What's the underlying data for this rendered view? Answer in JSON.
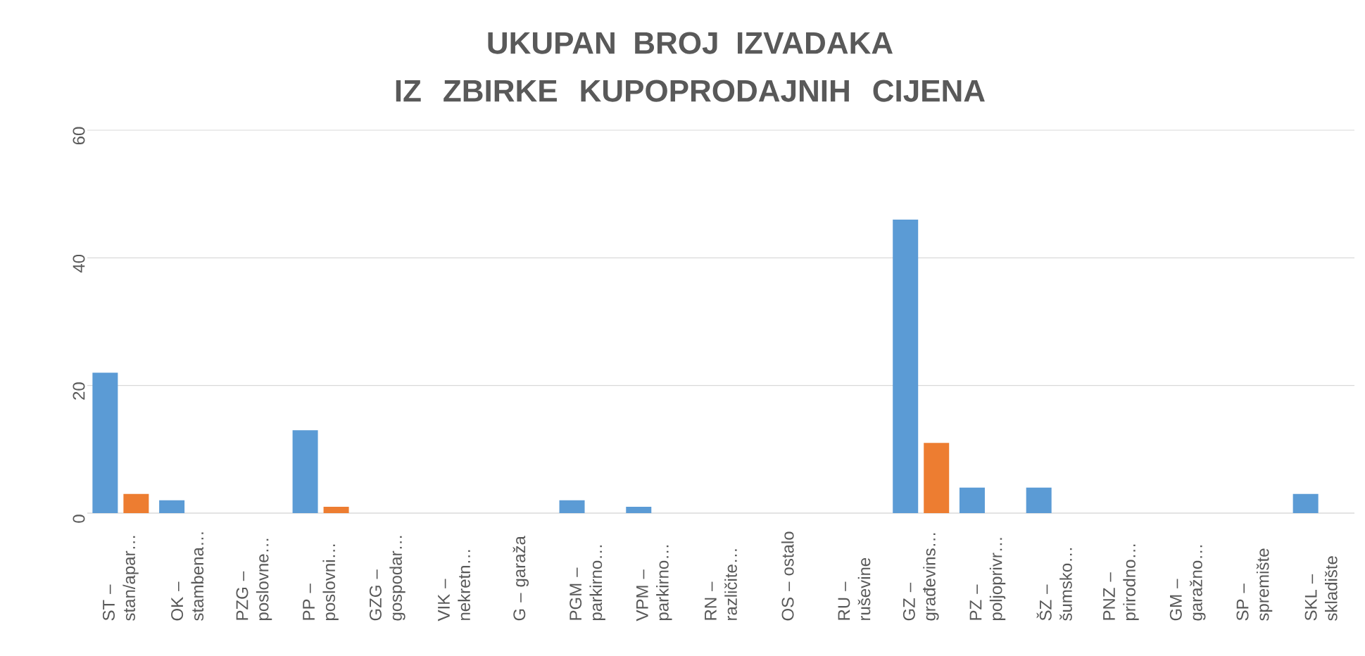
{
  "chart_data": {
    "type": "bar",
    "title": "UKUPAN BROJ IZVADAKA IZ ZBIRKE KUPOPRODAJNIH CIJENA",
    "categories": [
      "ST – stan/apar…",
      "OK – stambena…",
      "PZG – poslovne…",
      "PP – poslovni…",
      "GZG – gospodar…",
      "VIK – nekretn…",
      "G – garaža",
      "PGM – parkirno…",
      "VPM – parkirno…",
      "RN – različite…",
      "OS – ostalo",
      "RU – ruševine",
      "GZ – građevins…",
      "PZ – poljoprivr…",
      "ŠZ – šumsko…",
      "PNZ – prirodno…",
      "GM – garažno…",
      "SP – spremište",
      "SKL – skladište"
    ],
    "series": [
      {
        "color": "#5b9bd5",
        "values": [
          22,
          2,
          0,
          13,
          0,
          0,
          0,
          2,
          1,
          0,
          0,
          0,
          46,
          4,
          4,
          0,
          0,
          0,
          3
        ]
      },
      {
        "color": "#ed7d31",
        "values": [
          3,
          0,
          0,
          1,
          0,
          0,
          0,
          0,
          0,
          0,
          0,
          0,
          11,
          0,
          0,
          0,
          0,
          0,
          0
        ]
      }
    ],
    "ylim": [
      0,
      60
    ],
    "yticks": [
      0,
      20,
      40,
      60
    ],
    "grid": "y"
  }
}
